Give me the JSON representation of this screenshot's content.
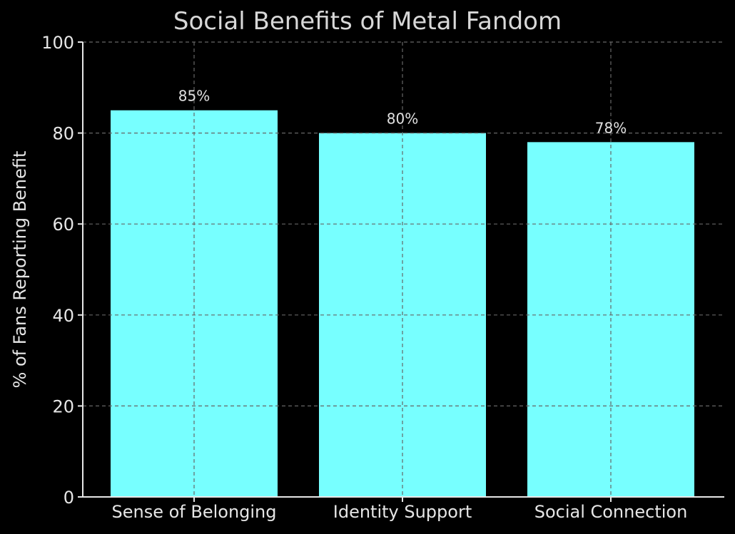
{
  "chart_data": {
    "type": "bar",
    "title": "Social Benefits of Metal Fandom",
    "xlabel": "",
    "ylabel": "% of Fans Reporting Benefit",
    "categories": [
      "Sense of Belonging",
      "Identity Support",
      "Social Connection"
    ],
    "values": [
      85,
      80,
      78
    ],
    "value_labels": [
      "85%",
      "80%",
      "78%"
    ],
    "ylim": [
      0,
      100
    ],
    "yticks": [
      0,
      20,
      40,
      60,
      80,
      100
    ],
    "grid": true,
    "grid_style": "dashed",
    "legend": null,
    "colors": {
      "bar": "#77ffff",
      "background": "#000000",
      "text": "#e6e6e6",
      "grid": "#666666"
    }
  }
}
